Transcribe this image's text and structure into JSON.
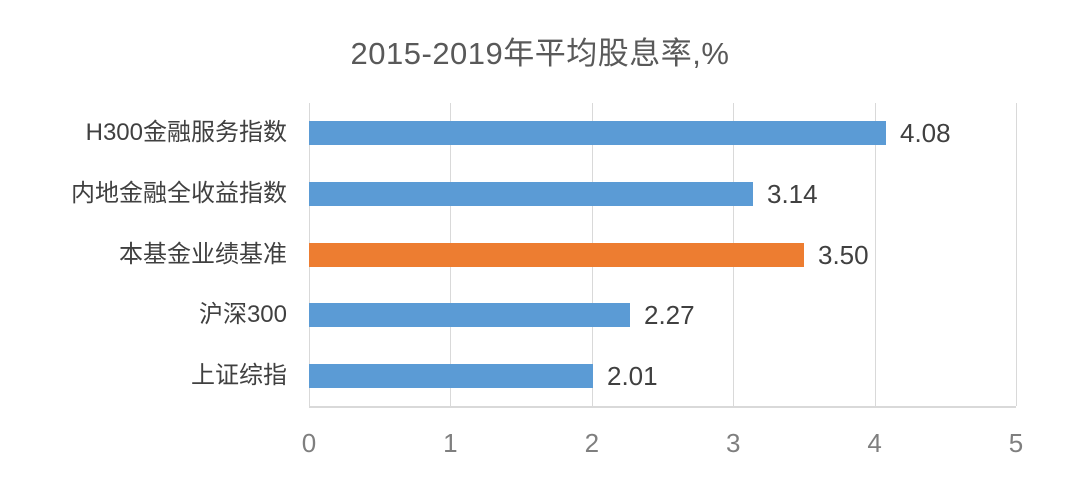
{
  "chart_data": {
    "type": "bar",
    "orientation": "horizontal",
    "title": "2015-2019年平均股息率,%",
    "categories": [
      "H300金融服务指数",
      "内地金融全收益指数",
      "本基金业绩基准",
      "沪深300",
      "上证综指"
    ],
    "values": [
      4.08,
      3.14,
      3.5,
      2.27,
      2.01
    ],
    "value_labels": [
      "4.08",
      "3.14",
      "3.50",
      "2.27",
      "2.01"
    ],
    "bar_colors": [
      "#5B9BD5",
      "#5B9BD5",
      "#ED7D31",
      "#5B9BD5",
      "#5B9BD5"
    ],
    "highlighted_category": "本基金业绩基准",
    "xlabel": "",
    "ylabel": "",
    "xlim": [
      0,
      5
    ],
    "x_ticks": [
      "0",
      "1",
      "2",
      "3",
      "4",
      "5"
    ],
    "grid": "vertical-gridlines-on",
    "legend": "none"
  },
  "colors": {
    "bar_default": "#5B9BD5",
    "bar_highlight": "#ED7D31",
    "gridline": "#D9D9D9",
    "axis_line": "#D9D9D9",
    "title_text": "#595959",
    "label_text": "#404040",
    "tick_text": "#7F7F7F",
    "background": "#FFFFFF"
  }
}
